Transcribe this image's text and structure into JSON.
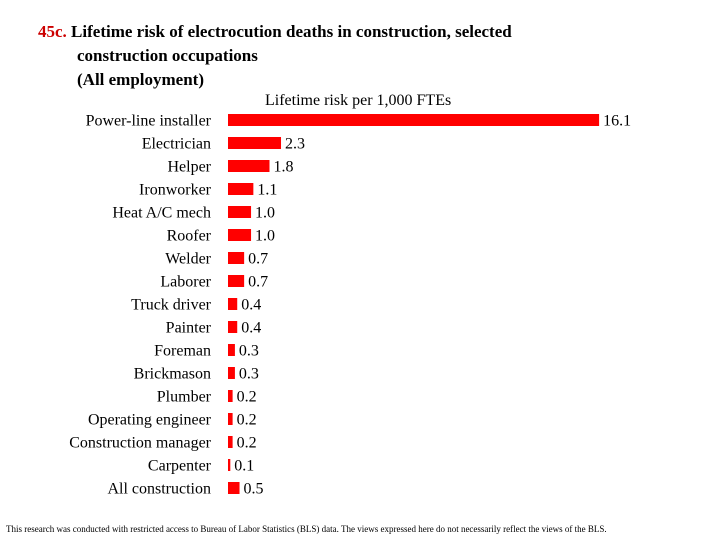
{
  "title": {
    "number": "45c.",
    "line1": "Lifetime risk of electrocution deaths in construction, selected",
    "line2": "construction occupations",
    "line3": "(All employment)"
  },
  "chart_data": {
    "type": "bar",
    "orientation": "horizontal",
    "xlabel": "Lifetime risk per 1,000 FTEs",
    "categories": [
      "Power-line installer",
      "Electrician",
      "Helper",
      "Ironworker",
      "Heat A/C mech",
      "Roofer",
      "Welder",
      "Laborer",
      "Truck driver",
      "Painter",
      "Foreman",
      "Brickmason",
      "Plumber",
      "Operating engineer",
      "Construction manager",
      "Carpenter",
      "All construction"
    ],
    "values": [
      16.1,
      2.3,
      1.8,
      1.1,
      1.0,
      1.0,
      0.7,
      0.7,
      0.4,
      0.4,
      0.3,
      0.3,
      0.2,
      0.2,
      0.2,
      0.1,
      0.5
    ],
    "value_labels": [
      "16.1",
      "2.3",
      "1.8",
      "1.1",
      "1.0",
      "1.0",
      "0.7",
      "0.7",
      "0.4",
      "0.4",
      "0.3",
      "0.3",
      "0.2",
      "0.2",
      "0.2",
      "0.1",
      "0.5"
    ],
    "bar_color": "#ff0000"
  },
  "footnote": "This research was conducted with restricted access to Bureau of Labor Statistics (BLS) data.  The views expressed here do not necessarily reflect the views of the BLS."
}
